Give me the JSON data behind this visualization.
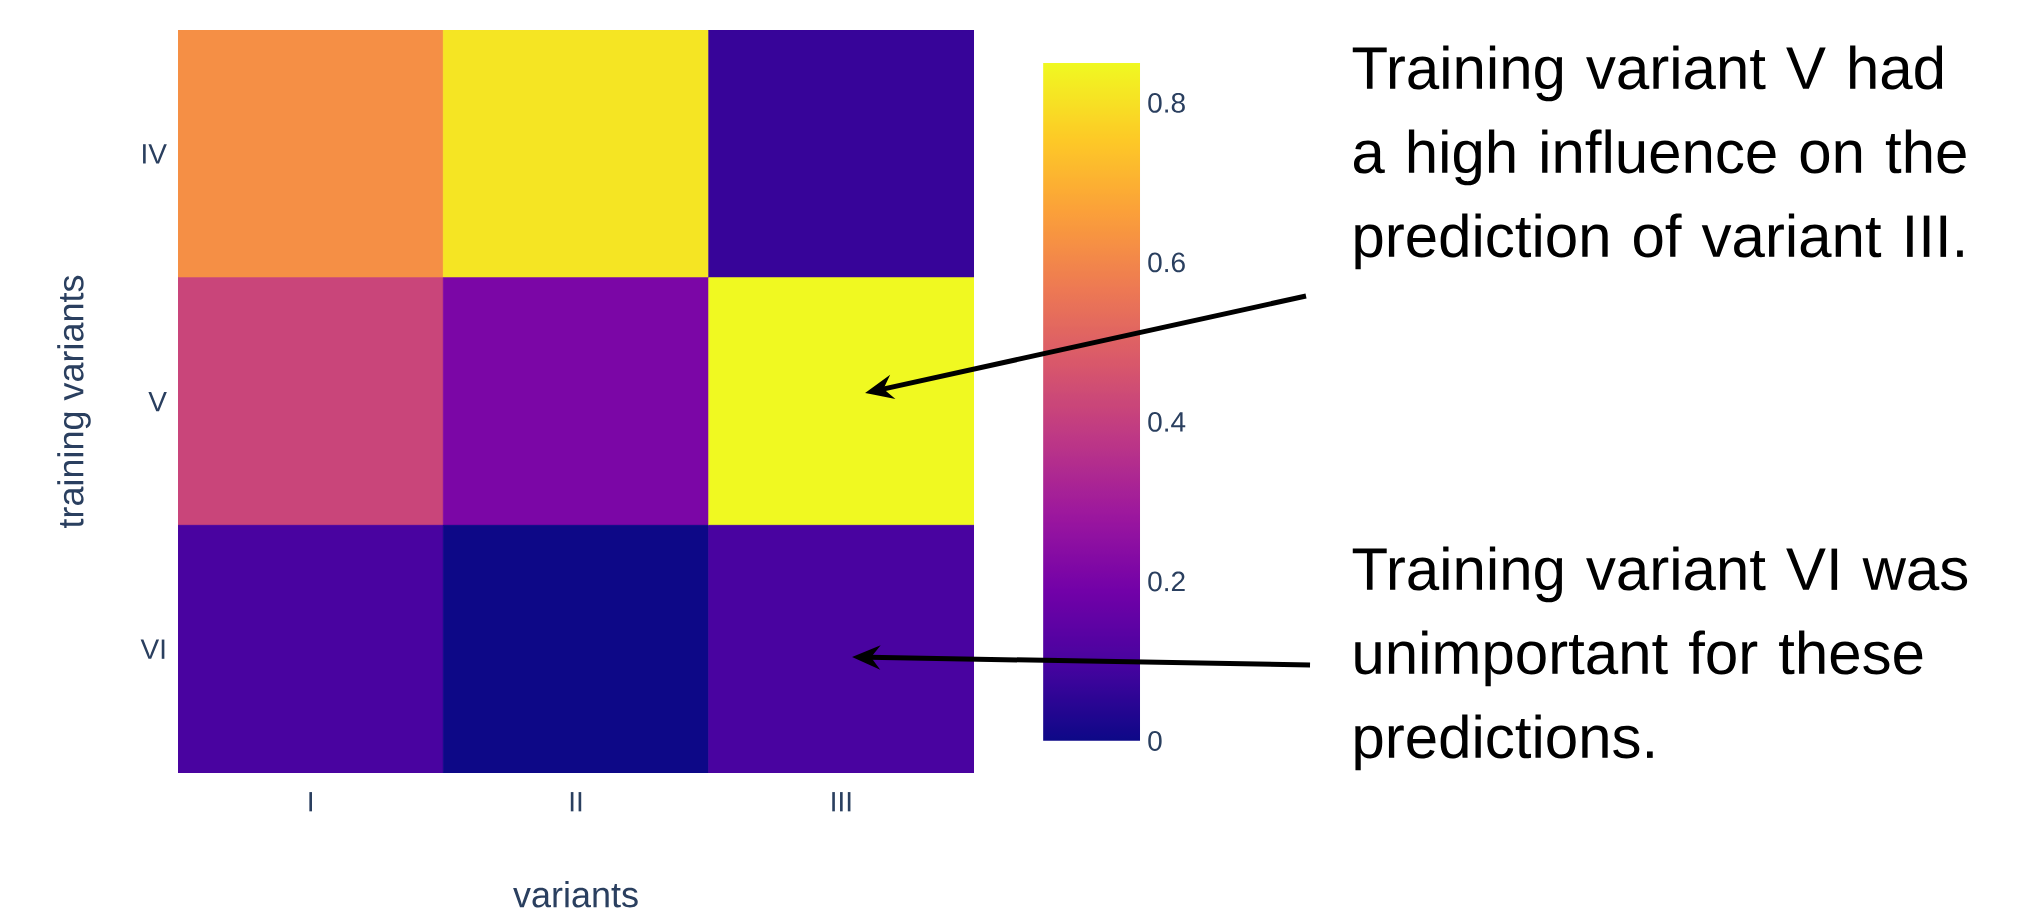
{
  "chart_data": {
    "type": "heatmap",
    "xlabel": "variants",
    "ylabel": "training variants",
    "categories": [
      "I",
      "II",
      "III"
    ],
    "y_categories": [
      "IV",
      "V",
      "VI"
    ],
    "cells": [
      [
        0.62,
        0.81,
        0.07
      ],
      [
        0.42,
        0.21,
        0.85
      ],
      [
        0.1,
        0.0,
        0.1
      ]
    ],
    "clim": [
      0,
      0.85
    ],
    "cticks": [
      0,
      0.2,
      0.4,
      0.6,
      0.8
    ],
    "annotations": [
      "Training variant V had a high influence on the prediction of variant III.",
      "Training variant VI was unimportant for these predictions."
    ]
  }
}
